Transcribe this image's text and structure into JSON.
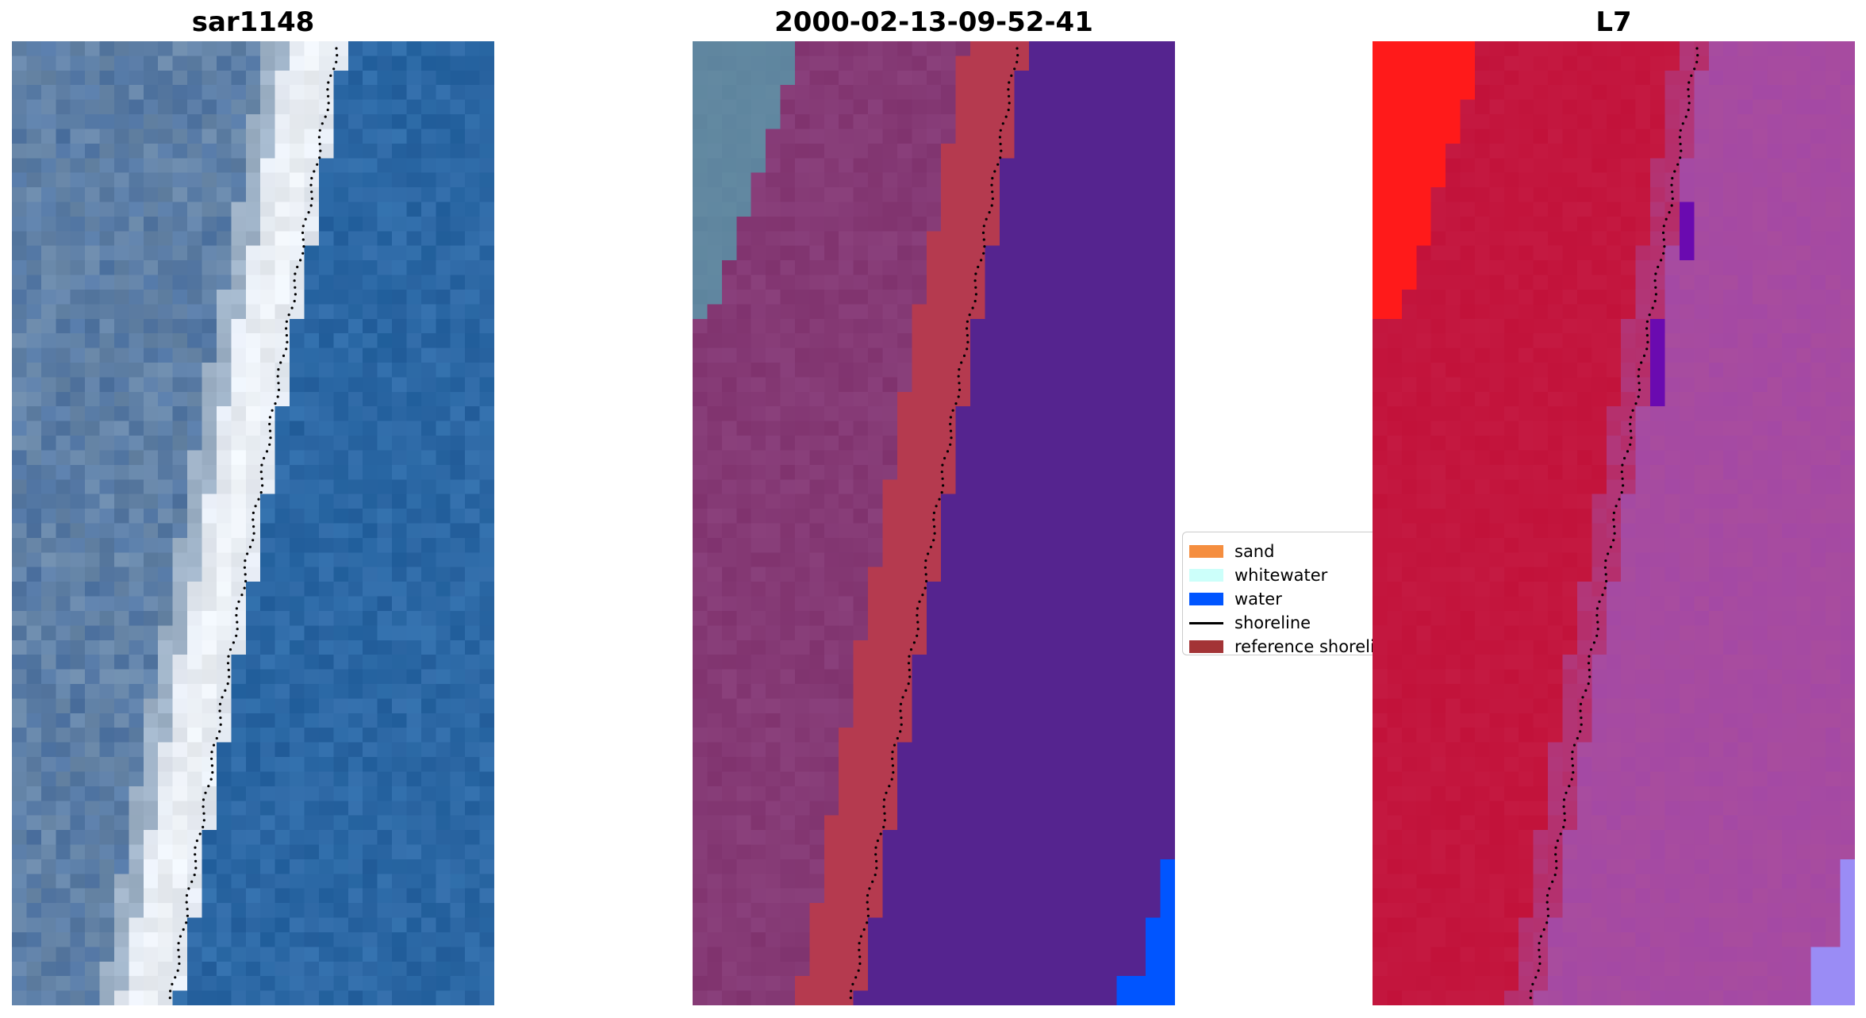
{
  "panels": [
    {
      "title": "sar1148"
    },
    {
      "title": "2000-02-13-09-52-41"
    },
    {
      "title": "L7"
    }
  ],
  "legend": {
    "items": [
      {
        "label": "sand",
        "kind": "patch",
        "color": "#f58e3f"
      },
      {
        "label": "whitewater",
        "kind": "patch",
        "color": "#ccfffa"
      },
      {
        "label": "water",
        "kind": "patch",
        "color": "#0055ff"
      },
      {
        "label": "shoreline",
        "kind": "line",
        "color": "#000000"
      },
      {
        "label": "reference shoreline",
        "kind": "patch",
        "color": "#a33436"
      }
    ]
  },
  "colors": {
    "rgb_water": "#2c66a3",
    "rgb_land": "#6a88a8",
    "rgb_whitewater": "#eef2f6",
    "class_land": "#80336e",
    "class_sand_band": "#b53a4f",
    "class_water": "#55248f",
    "class_water_edge": "#0055ff",
    "class_grey_corner": "#5e849e",
    "ndwi_land": "#c2123a",
    "ndwi_water": "#a84c9e",
    "ndwi_bright": "#ff1a1a",
    "ndwi_light": "#9a8cf5",
    "ndwi_dark_spot": "#6a0ab0"
  }
}
